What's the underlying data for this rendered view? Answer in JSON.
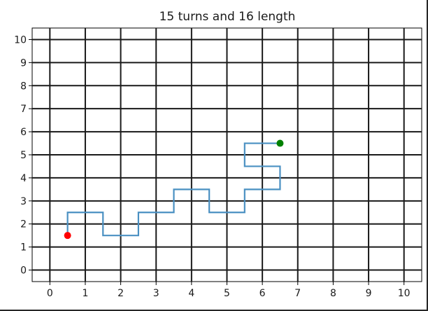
{
  "chart_data": {
    "type": "line",
    "title": "15 turns and 16 length",
    "xlabel": "",
    "ylabel": "",
    "xlim": [
      -0.5,
      10.5
    ],
    "ylim": [
      -0.5,
      10.5
    ],
    "xticks": [
      "0",
      "1",
      "2",
      "3",
      "4",
      "5",
      "6",
      "7",
      "8",
      "9",
      "10"
    ],
    "yticks": [
      "0",
      "1",
      "2",
      "3",
      "4",
      "5",
      "6",
      "7",
      "8",
      "9",
      "10"
    ],
    "grid": true,
    "series": [
      {
        "color": "#4a90c2",
        "x": [
          0.5,
          0.5,
          1.5,
          1.5,
          2.5,
          2.5,
          3.5,
          3.5,
          4.5,
          4.5,
          5.5,
          5.5,
          6.5,
          6.5,
          5.5,
          5.5,
          6.5
        ],
        "y": [
          1.5,
          2.5,
          2.5,
          1.5,
          1.5,
          2.5,
          2.5,
          3.5,
          3.5,
          2.5,
          2.5,
          3.5,
          3.5,
          4.5,
          4.5,
          5.5,
          5.5
        ]
      }
    ],
    "markers": [
      {
        "role": "start",
        "x": 0.5,
        "y": 1.5,
        "color": "#ff0000"
      },
      {
        "role": "end",
        "x": 6.5,
        "y": 5.5,
        "color": "#008000"
      }
    ]
  }
}
